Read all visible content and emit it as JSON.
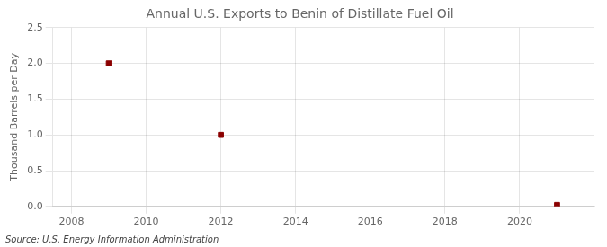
{
  "chart_data": {
    "type": "scatter",
    "title": "Annual U.S. Exports to Benin of Distillate Fuel Oil",
    "ylabel": "Thousand Barrels per Day",
    "annotations": [
      "Source: U.S. Energy Information Administration"
    ],
    "x": [
      2009,
      2012,
      2021
    ],
    "values": [
      2.0,
      1.0,
      0.02
    ],
    "color": "#8b0000",
    "marker": "square",
    "xlim": [
      2007.5,
      2022.0
    ],
    "xticks": [
      2008,
      2010,
      2012,
      2014,
      2016,
      2018,
      2020
    ],
    "ylim": [
      0.0,
      2.5
    ],
    "yticks": [
      {
        "value": 0.0,
        "label": "0.0"
      },
      0.5,
      {
        "value": 1.0,
        "label": "1.0"
      },
      1.5,
      {
        "value": 2.0,
        "label": "2.0"
      },
      2.5
    ],
    "grid": true
  }
}
